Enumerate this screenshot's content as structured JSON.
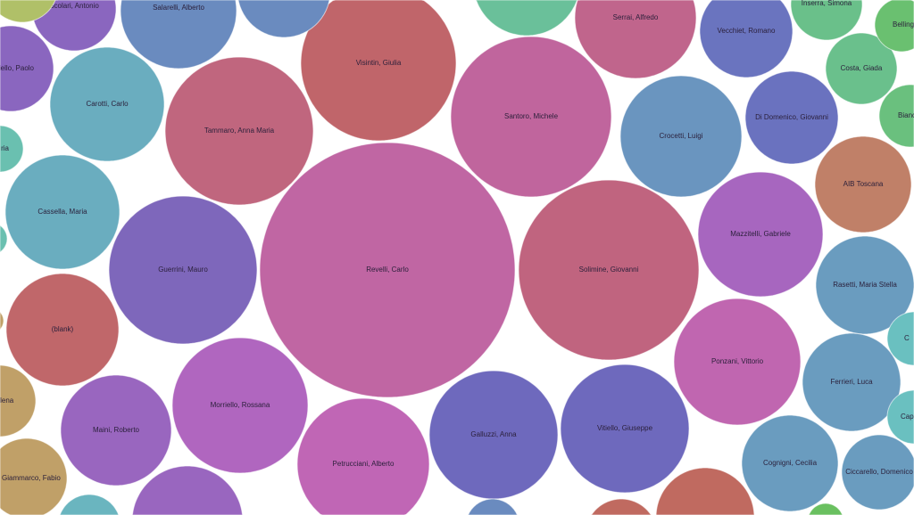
{
  "chart_data": {
    "type": "bubble",
    "title": "",
    "bubbles": [
      {
        "label": "Revelli, Carlo",
        "value": 100,
        "color": "#c066a3"
      },
      {
        "label": "Solimine, Giovanni",
        "value": 50,
        "color": "#c0647f"
      },
      {
        "label": "Santoro, Michele",
        "value": 40,
        "color": "#c0659d"
      },
      {
        "label": "Visintin, Giulia",
        "value": 37,
        "color": "#c0656a"
      },
      {
        "label": "Tammaro, Anna Maria",
        "value": 34,
        "color": "#c0667e"
      },
      {
        "label": "Guerrini, Mauro",
        "value": 34,
        "color": "#7e67bb"
      },
      {
        "label": "Morriello, Rossana",
        "value": 28,
        "color": "#b066bf"
      },
      {
        "label": "Petrucciani, Alberto",
        "value": 27,
        "color": "#c066b5"
      },
      {
        "label": "Galluzzi, Anna",
        "value": 25,
        "color": "#6e69bd"
      },
      {
        "label": "Vitiello, Giuseppe",
        "value": 25,
        "color": "#6e69bd"
      },
      {
        "label": "Ponzani, Vittorio",
        "value": 25,
        "color": "#c066b0"
      },
      {
        "label": "Mazzitelli, Gabriele",
        "value": 24,
        "color": "#a766bf"
      },
      {
        "label": "Crocetti, Luigi",
        "value": 23,
        "color": "#6a95bf"
      },
      {
        "label": "Salarelli, Alberto",
        "value": 21,
        "color": "#6a8bbf"
      },
      {
        "label": "Carotti, Carlo",
        "value": 20,
        "color": "#6aadbf"
      },
      {
        "label": "Cassella, Maria",
        "value": 20,
        "color": "#6aadbf"
      },
      {
        "label": "(blank)",
        "value": 19,
        "color": "#c0676a"
      },
      {
        "label": "Maini, Roberto",
        "value": 19,
        "color": "#9966bf"
      },
      {
        "label": "Serrai, Alfredo",
        "value": 23,
        "color": "#c0658c"
      },
      {
        "label": "Vecchiet, Romano",
        "value": 13,
        "color": "#6a74bf"
      },
      {
        "label": "Di Domenico, Giovanni",
        "value": 13,
        "color": "#6a72bf"
      },
      {
        "label": "AIB Toscana",
        "value": 14,
        "color": "#c08068"
      },
      {
        "label": "Rasetti, Maria Stella",
        "value": 15,
        "color": "#6a9cbf"
      },
      {
        "label": "Ferrieri, Luca",
        "value": 15,
        "color": "#6a9cbf"
      },
      {
        "label": "Cognigni, Cecilia",
        "value": 14,
        "color": "#6a9cbf"
      },
      {
        "label": "Ciccarello, Domenico",
        "value": 9,
        "color": "#6a9cbf"
      },
      {
        "label": "Costa, Giada",
        "value": 8,
        "color": "#6ac08c"
      },
      {
        "label": "Inserra, Simona",
        "value": 8,
        "color": "#6ac08a"
      },
      {
        "label": "Bellinge",
        "value": 4,
        "color": "#6ac070"
      },
      {
        "label": "Bianc",
        "value": 6,
        "color": "#6ac07e"
      },
      {
        "label": "Scolari, Antonio",
        "value": 11,
        "color": "#8a66bf"
      },
      {
        "label": "iello, Paolo",
        "value": 11,
        "color": "#8a66bf"
      },
      {
        "label": "ria",
        "value": 4,
        "color": "#6ac0b0"
      },
      {
        "label": "Elena",
        "value": 8,
        "color": "#c0a068"
      },
      {
        "label": "Di Giammarco, Fabio",
        "value": 10,
        "color": "#c0a068"
      },
      {
        "label": "",
        "value": 15,
        "color": "#c06a60"
      },
      {
        "label": "",
        "value": 8,
        "color": "#c06a60"
      },
      {
        "label": "",
        "value": 18,
        "color": "#9966bf"
      },
      {
        "label": "",
        "value": 3,
        "color": "#6ac060"
      },
      {
        "label": "",
        "value": 12,
        "color": "#6a8bbf"
      },
      {
        "label": "",
        "value": 18,
        "color": "#6ac09a"
      },
      {
        "label": "",
        "value": 6,
        "color": "#6ab5bf"
      },
      {
        "label": "Cap",
        "value": 4,
        "color": "#6ac0c0"
      },
      {
        "label": "C",
        "value": 4,
        "color": "#6ac0c0"
      },
      {
        "label": "",
        "value": 4,
        "color": "#6a8bbf"
      },
      {
        "label": "",
        "value": 8,
        "color": "#b0c068"
      },
      {
        "label": "",
        "value": 2,
        "color": "#6ac0b0"
      },
      {
        "label": "",
        "value": 1,
        "color": "#c0a068"
      }
    ]
  }
}
